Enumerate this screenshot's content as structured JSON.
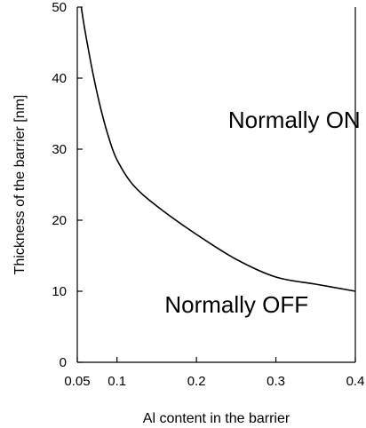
{
  "chart_data": {
    "type": "line",
    "title": "",
    "xlabel": "Al content in the barrier",
    "ylabel": "Thickness of the barrier [nm]",
    "xlim": [
      0.05,
      0.4
    ],
    "ylim": [
      0,
      50
    ],
    "x_ticks": [
      0.05,
      0.1,
      0.2,
      0.3,
      0.4
    ],
    "x_tick_labels": [
      "0.05",
      "0.1",
      "0.2",
      "0.3",
      "0.4"
    ],
    "y_ticks": [
      0,
      10,
      20,
      30,
      40,
      50
    ],
    "y_tick_labels": [
      "0",
      "10",
      "20",
      "30",
      "40",
      "50"
    ],
    "grid": false,
    "legend": "none",
    "line_color": "#000000",
    "series": [
      {
        "x": [
          0.055,
          0.06,
          0.07,
          0.08,
          0.09,
          0.1,
          0.12,
          0.15,
          0.2,
          0.25,
          0.3,
          0.35,
          0.4
        ],
        "y": [
          50,
          46.5,
          40.5,
          35.5,
          31.5,
          28.5,
          25,
          22,
          18,
          14.5,
          12,
          11,
          10
        ]
      }
    ],
    "annotations": [
      {
        "text": "Normally ON",
        "x": 0.24,
        "y": 33
      },
      {
        "text": "Normally OFF",
        "x": 0.16,
        "y": 7
      }
    ]
  }
}
